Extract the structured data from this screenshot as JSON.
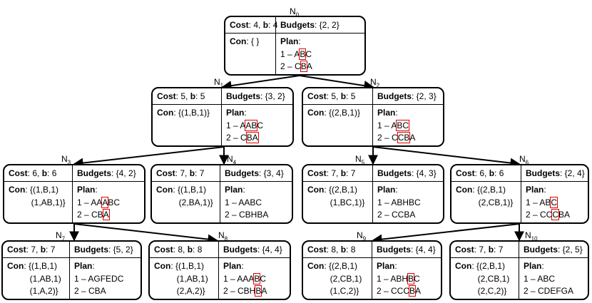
{
  "nodes": [
    {
      "id": "N0",
      "label": "N",
      "sub": "0",
      "cost": "4",
      "b": "4",
      "budgets": "{2, 2}",
      "con": [
        "{ }"
      ],
      "plan": [
        {
          "pre": "1 – A",
          "hl": "B",
          "post": "C"
        },
        {
          "pre": "2 – C",
          "hl": "B",
          "post": "A"
        }
      ]
    },
    {
      "id": "N1",
      "label": "N",
      "sub": "1",
      "cost": "5",
      "b": "5",
      "budgets": "{3, 2}",
      "con": [
        "{(1,B,1)}"
      ],
      "plan": [
        {
          "pre": "1 – A",
          "hl": "AB",
          "post": "C"
        },
        {
          "pre": "2 – C",
          "hl": "BA",
          "post": ""
        }
      ]
    },
    {
      "id": "N2",
      "label": "N",
      "sub": "2",
      "cost": "5",
      "b": "5",
      "budgets": "{2, 3}",
      "con": [
        "{(2,B,1)}"
      ],
      "plan": [
        {
          "pre": "1 – A",
          "hl": "BC",
          "post": ""
        },
        {
          "pre": "2 – C",
          "hl": "CB",
          "post": "A"
        }
      ]
    },
    {
      "id": "N3",
      "label": "N",
      "sub": "3",
      "cost": "6",
      "b": "6",
      "budgets": "{4, 2}",
      "con": [
        "{(1,B,1)",
        "(1,AB,1)}"
      ],
      "plan": [
        {
          "pre": "1 – AA",
          "hl": "A",
          "post": "BC"
        },
        {
          "pre": "2 – CB",
          "hl": "A",
          "post": ""
        }
      ]
    },
    {
      "id": "N4",
      "label": "N",
      "sub": "4",
      "cost": "7",
      "b": "7",
      "budgets": "{3, 4}",
      "con": [
        "{(1,B,1)",
        "(2,BA,1)}"
      ],
      "plan": [
        {
          "pre": "1 – AABC",
          "hl": "",
          "post": ""
        },
        {
          "pre": "2 – CBHBA",
          "hl": "",
          "post": ""
        }
      ]
    },
    {
      "id": "N5",
      "label": "N",
      "sub": "5",
      "cost": "7",
      "b": "7",
      "budgets": "{4, 3}",
      "con": [
        "{(2,B,1)",
        "(1,BC,1)}"
      ],
      "plan": [
        {
          "pre": "1 – ABHBC",
          "hl": "",
          "post": ""
        },
        {
          "pre": "2 – CCBA",
          "hl": "",
          "post": ""
        }
      ]
    },
    {
      "id": "N6",
      "label": "N",
      "sub": "6",
      "cost": "6",
      "b": "6",
      "budgets": "{2, 4}",
      "con": [
        "{(2,B,1)",
        "(2,CB,1)}"
      ],
      "plan": [
        {
          "pre": "1 – AB",
          "hl": "C",
          "post": ""
        },
        {
          "pre": "2 – CC",
          "hl": "C",
          "post": "BA"
        }
      ]
    },
    {
      "id": "N7",
      "label": "N",
      "sub": "7",
      "cost": "7",
      "b": "7",
      "budgets": "{5, 2}",
      "con": [
        "{(1,B,1)",
        "(1,AB,1)",
        "(1,A,2)}"
      ],
      "plan": [
        {
          "pre": "1 – AGFEDC",
          "hl": "",
          "post": ""
        },
        {
          "pre": "2 – CBA",
          "hl": "",
          "post": ""
        }
      ]
    },
    {
      "id": "N8",
      "label": "N",
      "sub": "8",
      "cost": "8",
      "b": "8",
      "budgets": "{4, 4}",
      "con": [
        "{(1,B,1)",
        "(1,AB,1)",
        "(2,A,2)}"
      ],
      "plan": [
        {
          "pre": "1 – AAA",
          "hl": "B",
          "post": "C"
        },
        {
          "pre": "2 – CBH",
          "hl": "B",
          "post": "A"
        }
      ]
    },
    {
      "id": "N9",
      "label": "N",
      "sub": "9",
      "cost": "8",
      "b": "8",
      "budgets": "{4, 4}",
      "con": [
        "{(2,B,1)",
        "(2,CB,1)",
        "(1,C,2)}"
      ],
      "plan": [
        {
          "pre": "1 – ABH",
          "hl": "B",
          "post": "C"
        },
        {
          "pre": "2 – CCC",
          "hl": "B",
          "post": "A"
        }
      ]
    },
    {
      "id": "N10",
      "label": "N",
      "sub": "10",
      "cost": "7",
      "b": "7",
      "budgets": "{2, 5}",
      "con": [
        "{(2,B,1)",
        "(2,CB,1)",
        "(2,C,2)}"
      ],
      "plan": [
        {
          "pre": "1 – ABC",
          "hl": "",
          "post": ""
        },
        {
          "pre": "2 – CDEFGA",
          "hl": "",
          "post": ""
        }
      ]
    }
  ],
  "field_labels": {
    "cost": "Cost",
    "b": "b",
    "budgets": "Budgets",
    "con": "Con",
    "plan": "Plan"
  },
  "edges": [
    [
      "N0",
      "N1"
    ],
    [
      "N0",
      "N2"
    ],
    [
      "N1",
      "N3"
    ],
    [
      "N1",
      "N4"
    ],
    [
      "N2",
      "N5"
    ],
    [
      "N2",
      "N6"
    ],
    [
      "N3",
      "N7"
    ],
    [
      "N3",
      "N8"
    ],
    [
      "N6",
      "N9"
    ],
    [
      "N6",
      "N10"
    ]
  ]
}
